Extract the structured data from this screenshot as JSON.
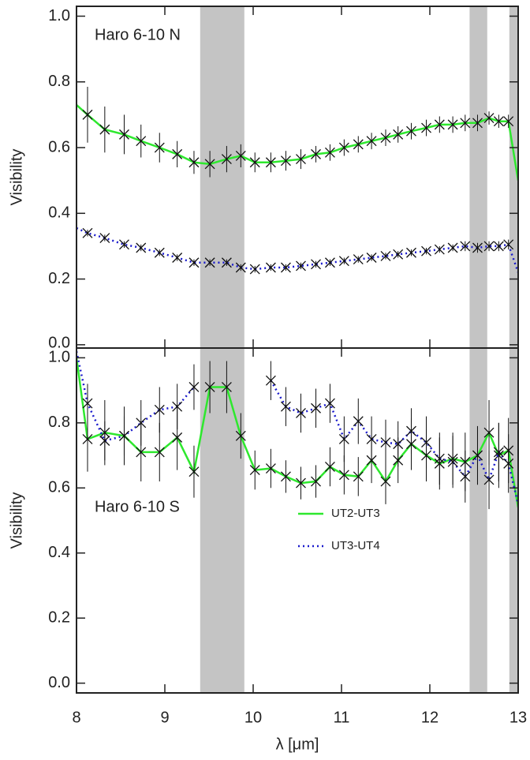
{
  "chart_data": [
    {
      "type": "line",
      "annotation": "Haro 6-10 N",
      "ylabel": "Visibility",
      "xlim": [
        8,
        13
      ],
      "xticks": [
        8,
        9,
        10,
        11,
        12,
        13
      ],
      "ylim": [
        -0.01,
        1.03
      ],
      "yticks": [
        {
          "value": 0,
          "label": "0.0"
        },
        0.2,
        0.4,
        0.6,
        0.8,
        {
          "value": 1,
          "label": "1.0"
        }
      ],
      "bands": [
        [
          9.4,
          9.9
        ],
        [
          12.45,
          12.65
        ],
        [
          12.9,
          13.0
        ]
      ],
      "band_color": "#c4c4c4",
      "x": [
        8.0,
        8.125,
        8.32,
        8.54,
        8.73,
        8.94,
        9.14,
        9.33,
        9.51,
        9.7,
        9.86,
        10.02,
        10.2,
        10.37,
        10.54,
        10.71,
        10.87,
        11.03,
        11.19,
        11.34,
        11.5,
        11.64,
        11.79,
        11.96,
        12.11,
        12.26,
        12.4,
        12.54,
        12.67,
        12.78,
        12.89,
        13.0
      ],
      "series": [
        {
          "color": "#2ee82e",
          "linestyle": "solid",
          "values": [
            0.73,
            0.7,
            0.655,
            0.64,
            0.62,
            0.6,
            0.58,
            0.555,
            0.55,
            0.565,
            0.575,
            0.555,
            0.555,
            0.56,
            0.565,
            0.58,
            0.585,
            0.6,
            0.61,
            0.62,
            0.63,
            0.64,
            0.65,
            0.66,
            0.67,
            0.67,
            0.675,
            0.675,
            0.69,
            0.68,
            0.68,
            0.5
          ],
          "errors": [
            null,
            0.085,
            0.07,
            0.06,
            0.05,
            0.045,
            0.04,
            0.035,
            0.04,
            0.04,
            0.035,
            0.03,
            0.03,
            0.03,
            0.03,
            0.025,
            0.025,
            0.025,
            0.025,
            0.025,
            0.025,
            0.025,
            0.025,
            0.025,
            0.025,
            0.025,
            0.025,
            0.025,
            0.02,
            0.02,
            0.02,
            null
          ]
        },
        {
          "color": "#1a1acc",
          "linestyle": "dotted",
          "values": [
            0.355,
            0.34,
            0.325,
            0.305,
            0.295,
            0.28,
            0.265,
            0.25,
            0.25,
            0.25,
            0.235,
            0.23,
            0.235,
            0.235,
            0.24,
            0.245,
            0.25,
            0.255,
            0.26,
            0.265,
            0.27,
            0.275,
            0.28,
            0.285,
            0.29,
            0.295,
            0.3,
            0.295,
            0.3,
            0.3,
            0.305,
            0.22
          ],
          "errors": [
            null,
            0.01,
            0.01,
            0.01,
            0.01,
            0.01,
            0.01,
            0.01,
            0.01,
            0.01,
            0.01,
            0.01,
            0.01,
            0.01,
            0.01,
            0.01,
            0.01,
            0.01,
            0.01,
            0.01,
            0.01,
            0.01,
            0.01,
            0.01,
            0.01,
            0.01,
            0.015,
            0.015,
            0.015,
            0.015,
            0.015,
            null
          ]
        }
      ]
    },
    {
      "type": "line",
      "annotation": "Haro 6-10 S",
      "ylabel": "Visibility",
      "xlabel": "λ [μm]",
      "xlim": [
        8,
        13
      ],
      "xticks": [
        8,
        9,
        10,
        11,
        12,
        13
      ],
      "ylim": [
        -0.03,
        1.03
      ],
      "yticks": [
        {
          "value": 0,
          "label": "0.0"
        },
        0.2,
        0.4,
        0.6,
        0.8,
        {
          "value": 1,
          "label": "1.0"
        }
      ],
      "bands": [
        [
          9.4,
          9.9
        ],
        [
          12.45,
          12.65
        ],
        [
          12.9,
          13.0
        ]
      ],
      "band_color": "#c4c4c4",
      "legend": "center",
      "x": [
        8.0,
        8.125,
        8.32,
        8.54,
        8.73,
        8.94,
        9.14,
        9.33,
        9.51,
        9.7,
        9.86,
        10.02,
        10.2,
        10.37,
        10.54,
        10.71,
        10.87,
        11.03,
        11.19,
        11.34,
        11.5,
        11.64,
        11.79,
        11.96,
        12.11,
        12.26,
        12.4,
        12.54,
        12.67,
        12.78,
        12.89,
        13.0
      ],
      "series": [
        {
          "name": "UT2-UT3",
          "color": "#2ee82e",
          "linestyle": "solid",
          "values": [
            1.0,
            0.75,
            0.77,
            0.76,
            0.71,
            0.71,
            0.755,
            0.65,
            0.91,
            0.91,
            0.76,
            0.655,
            0.66,
            0.635,
            0.615,
            0.62,
            0.665,
            0.64,
            0.635,
            0.685,
            0.62,
            0.685,
            0.735,
            0.7,
            0.675,
            0.69,
            0.68,
            0.7,
            0.77,
            0.7,
            0.715,
            0.54
          ],
          "errors": [
            null,
            0.1,
            0.1,
            0.09,
            0.09,
            0.09,
            0.1,
            0.08,
            0.08,
            0.08,
            0.07,
            0.06,
            0.06,
            0.05,
            0.05,
            0.05,
            0.06,
            0.06,
            0.06,
            0.07,
            0.07,
            0.07,
            0.08,
            0.08,
            0.08,
            0.08,
            0.09,
            0.09,
            0.1,
            0.1,
            0.1,
            null
          ]
        },
        {
          "name": "UT3-UT4",
          "color": "#1a1acc",
          "linestyle": "dotted",
          "values": [
            1.02,
            0.86,
            0.745,
            0.76,
            0.8,
            0.84,
            0.85,
            0.91,
            null,
            null,
            null,
            null,
            0.93,
            0.85,
            0.83,
            0.845,
            0.86,
            0.75,
            0.805,
            0.75,
            0.74,
            0.735,
            0.775,
            0.74,
            0.69,
            0.68,
            0.635,
            0.7,
            0.625,
            0.71,
            0.675,
            0.55
          ],
          "errors": [
            null,
            0.06,
            0.06,
            0.06,
            0.07,
            0.07,
            0.07,
            0.07,
            null,
            null,
            null,
            null,
            0.06,
            0.06,
            0.06,
            0.06,
            0.06,
            0.07,
            0.07,
            0.07,
            0.07,
            0.07,
            0.07,
            0.08,
            0.08,
            0.08,
            0.08,
            0.09,
            0.09,
            0.09,
            0.09,
            null
          ]
        }
      ]
    }
  ]
}
